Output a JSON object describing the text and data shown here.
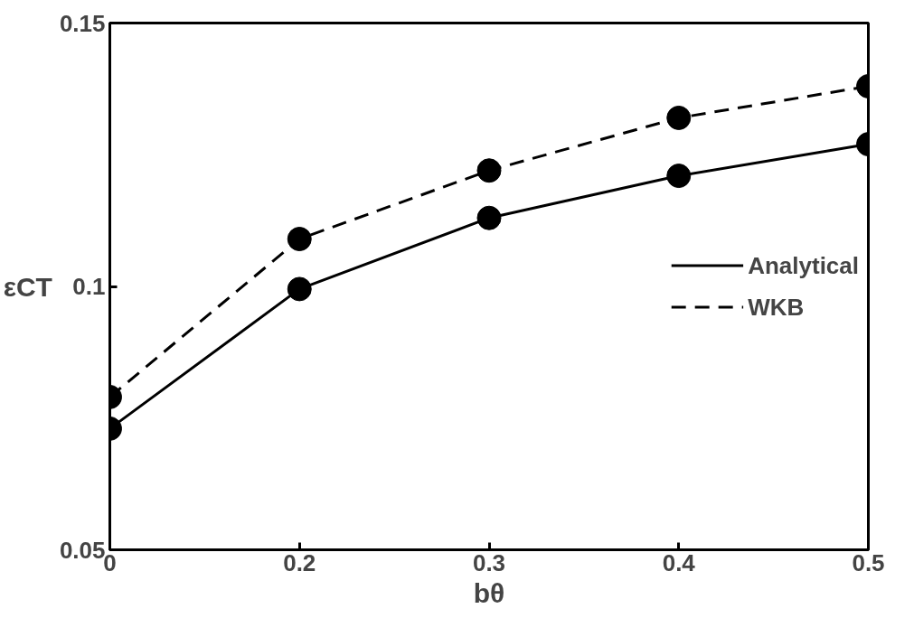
{
  "chart_data": {
    "type": "line",
    "xlabel": "bθ",
    "ylabel": "εCT",
    "categories": [
      "0",
      "0.2",
      "0.3",
      "0.4",
      "0.5"
    ],
    "series": [
      {
        "name": "Analytical",
        "color": "#000000",
        "line_style": "solid",
        "values": [
          0.073,
          0.0995,
          0.113,
          0.121,
          0.127
        ]
      },
      {
        "name": "WKB",
        "color": "#000000",
        "line_style": "dashed",
        "values": [
          0.079,
          0.109,
          0.122,
          0.132,
          0.138
        ]
      }
    ],
    "ylim": [
      0.05,
      0.15
    ],
    "yticks": [
      0.05,
      {
        "value": 0.1,
        "label": "0.1"
      },
      0.15
    ],
    "marker": "circle",
    "grid": false,
    "legend": "center right"
  }
}
